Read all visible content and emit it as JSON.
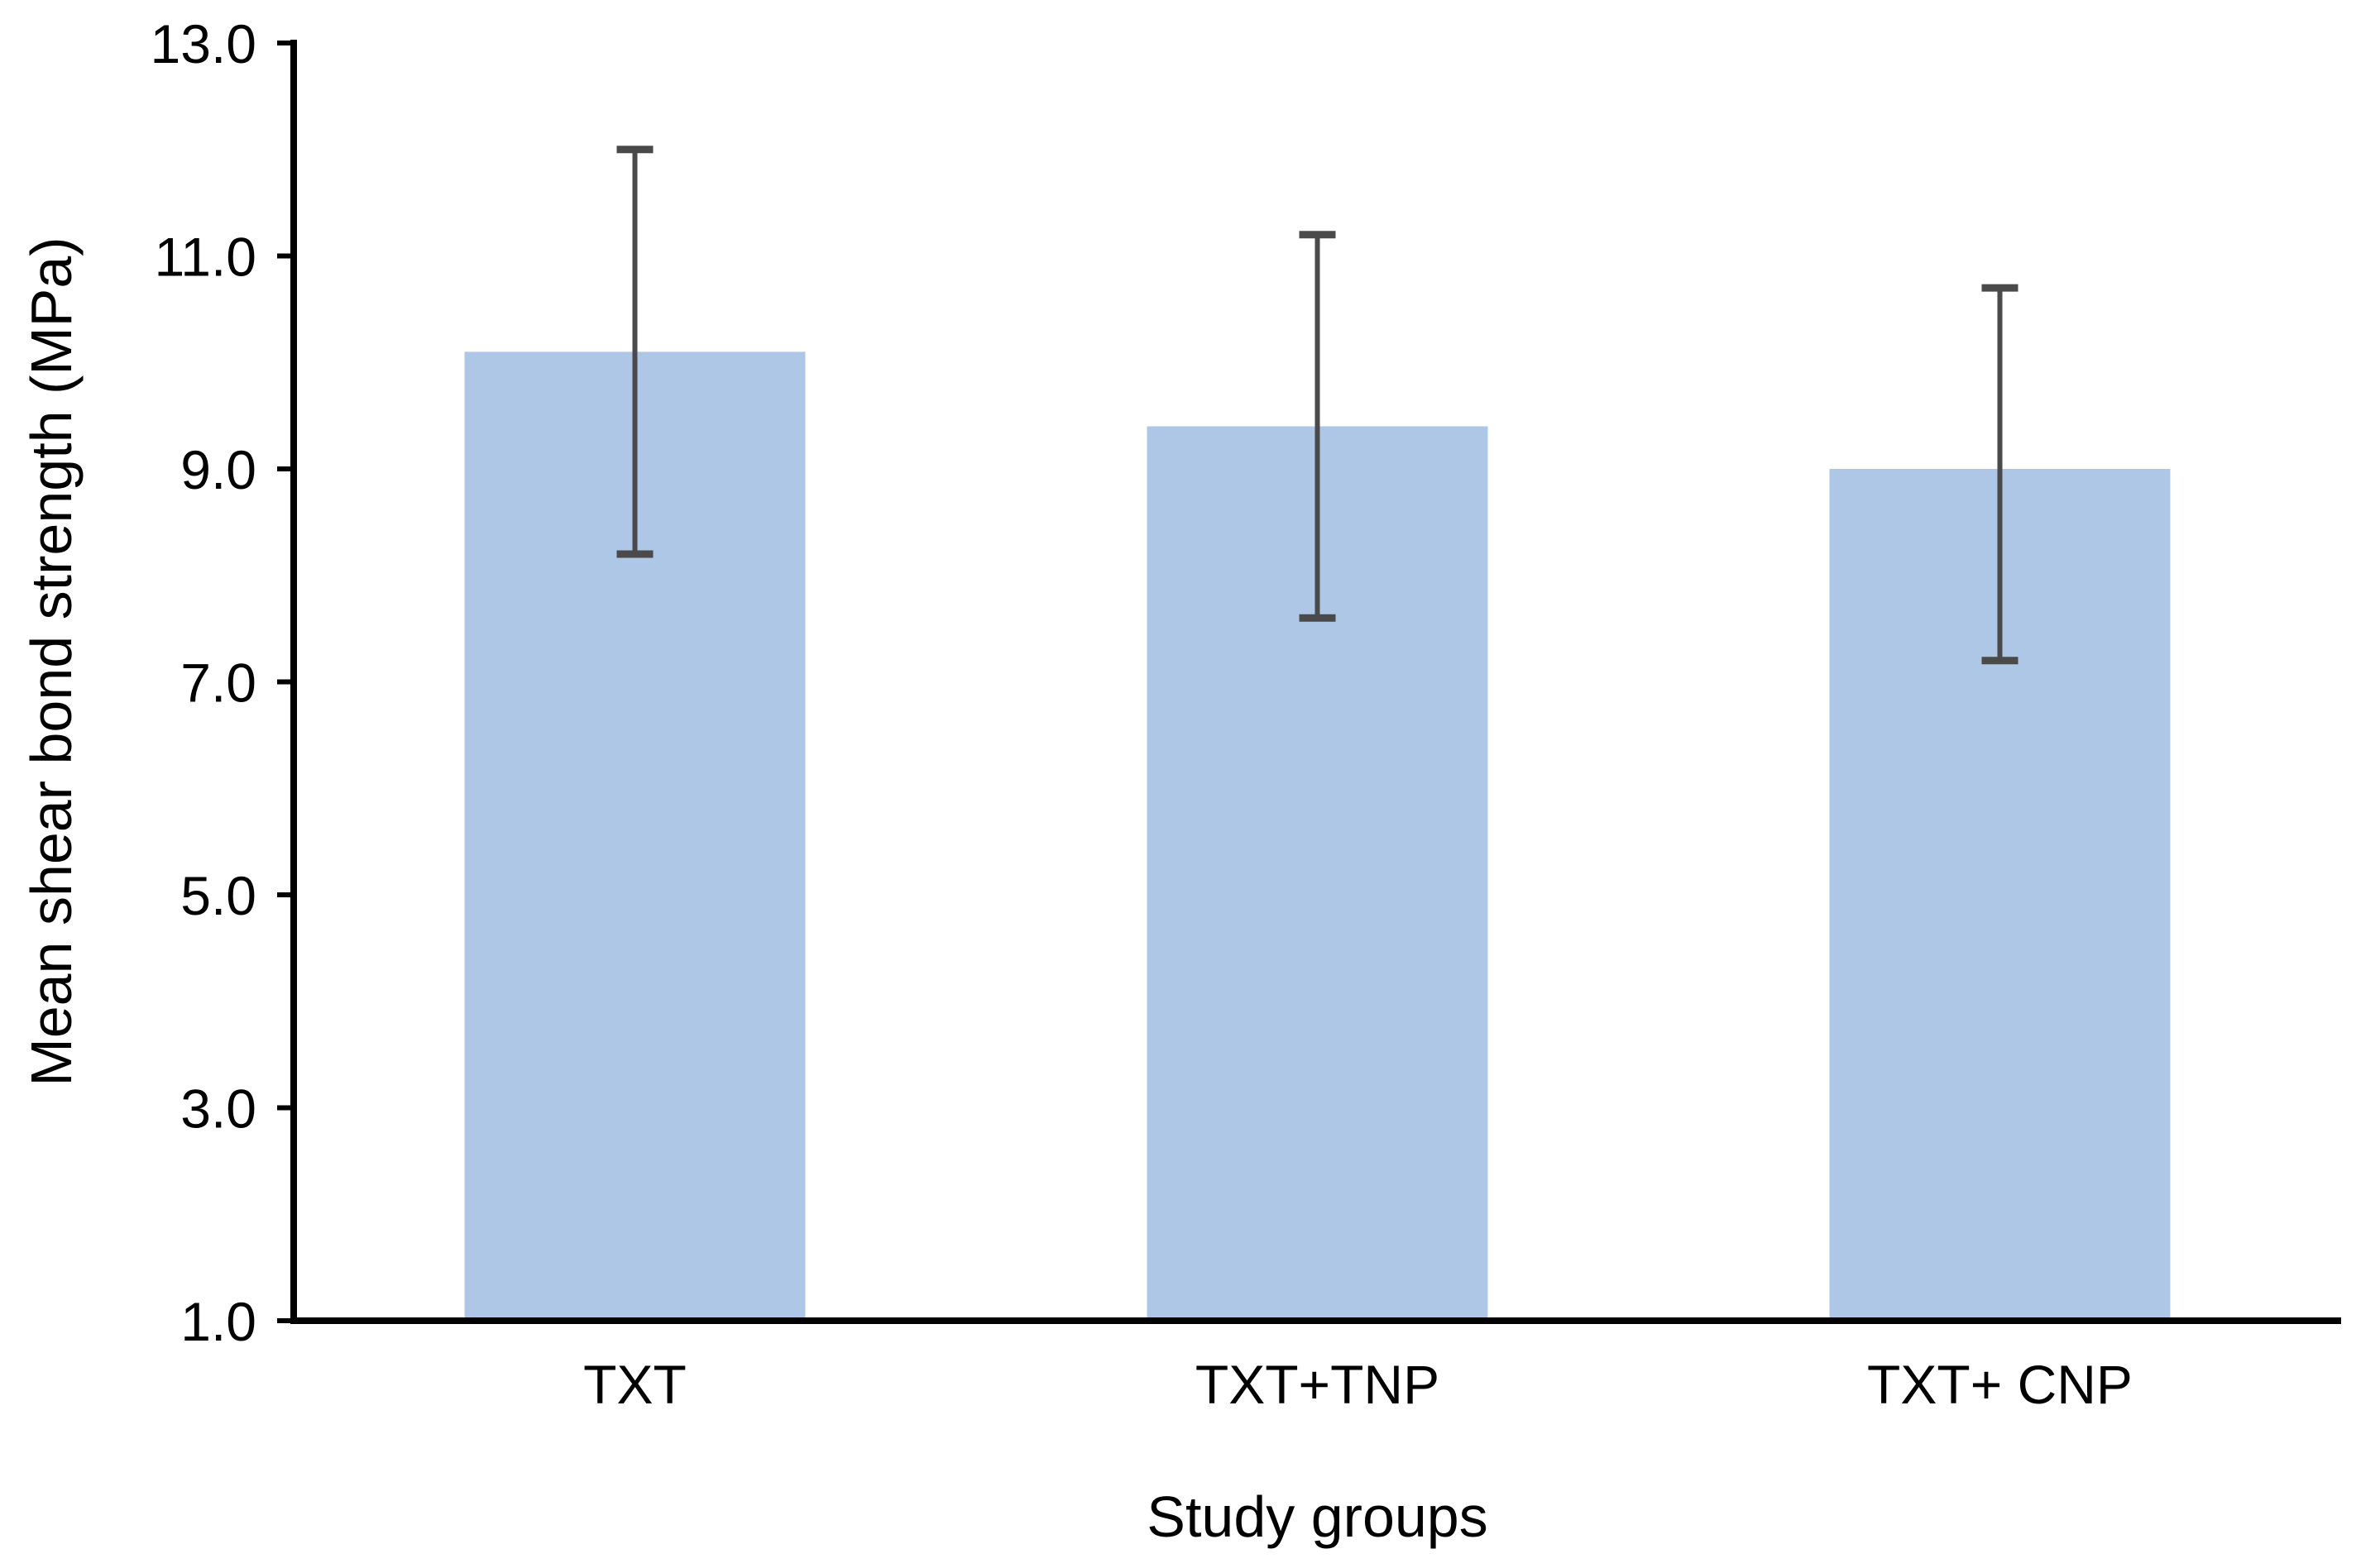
{
  "chart_data": {
    "type": "bar",
    "title": "",
    "xlabel": "Study groups",
    "ylabel": "Mean shear bond strength (MPa)",
    "categories": [
      "TXT",
      "TXT+TNP",
      "TXT+ CNP"
    ],
    "values": [
      10.1,
      9.4,
      9.0
    ],
    "error_upper": [
      1.9,
      1.8,
      1.7
    ],
    "error_lower": [
      1.9,
      1.8,
      1.8
    ],
    "ylim": [
      1.0,
      13.0
    ],
    "ytick_step": 2.0,
    "ytick_labels": [
      "1.0",
      "3.0",
      "5.0",
      "7.0",
      "9.0",
      "11.0",
      "13.0"
    ],
    "grid": false,
    "legend": false,
    "bar_color": "#AFC7E7",
    "error_bar_color": "#4A4A4A",
    "axis_color": "#000000"
  }
}
